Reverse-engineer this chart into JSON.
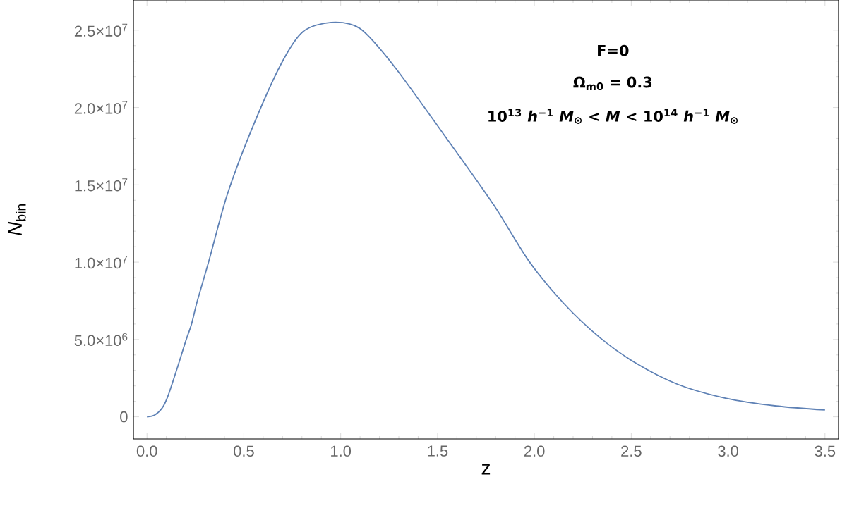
{
  "chart_data": {
    "type": "line",
    "xlabel": "z",
    "ylabel": "*N*$_{bin}$",
    "annotations": [
      "F=0",
      "Ω$_{m0}$ = 0.3",
      "10$^{13}$ *h*$^{−1}$ *M*$_{⊙}$ < *M* < 10$^{14}$ *h*$^{−1}$ *M*$_{⊙}$"
    ],
    "xlim": [
      -0.07,
      3.57
    ],
    "ylim": [
      -1430000,
      26950000
    ],
    "xticks": [
      {
        "value": 0,
        "label": "0.0"
      },
      0.5,
      {
        "value": 1,
        "label": "1.0"
      },
      1.5,
      {
        "value": 2,
        "label": "2.0"
      },
      2.5,
      {
        "value": 3,
        "label": "3.0"
      },
      3.5
    ],
    "yticks": [
      0,
      {
        "value": 5000000,
        "label": "5.0×10$^{6}$"
      },
      {
        "value": 10000000,
        "label": "1.0×10$^{7}$"
      },
      {
        "value": 15000000,
        "label": "1.5×10$^{7}$"
      },
      {
        "value": 20000000,
        "label": "2.0×10$^{7}$"
      },
      {
        "value": 25000000,
        "label": "2.5×10$^{7}$"
      }
    ],
    "marker": "none",
    "line_style": "solid",
    "series": [
      {
        "color": "#5e81b5",
        "x": [
          0,
          0.04,
          0.08,
          0.11,
          0.16,
          0.2,
          0.23,
          0.26,
          0.32,
          0.414,
          0.54,
          0.69,
          0.805,
          0.951,
          1.1,
          1.28,
          1.57,
          1.79,
          1.97,
          2.15,
          2.34,
          2.52,
          2.74,
          2.99,
          3.25,
          3.5
        ],
        "values": [
          0,
          120000,
          600000,
          1400000,
          3300000,
          4900000,
          6000000,
          7500000,
          10100000,
          14350000,
          18570000,
          22760000,
          24900000,
          25500000,
          25100000,
          22600000,
          17600000,
          13700000,
          10100000,
          7350000,
          5100000,
          3500000,
          2100000,
          1200000,
          700000,
          440000
        ]
      }
    ]
  }
}
